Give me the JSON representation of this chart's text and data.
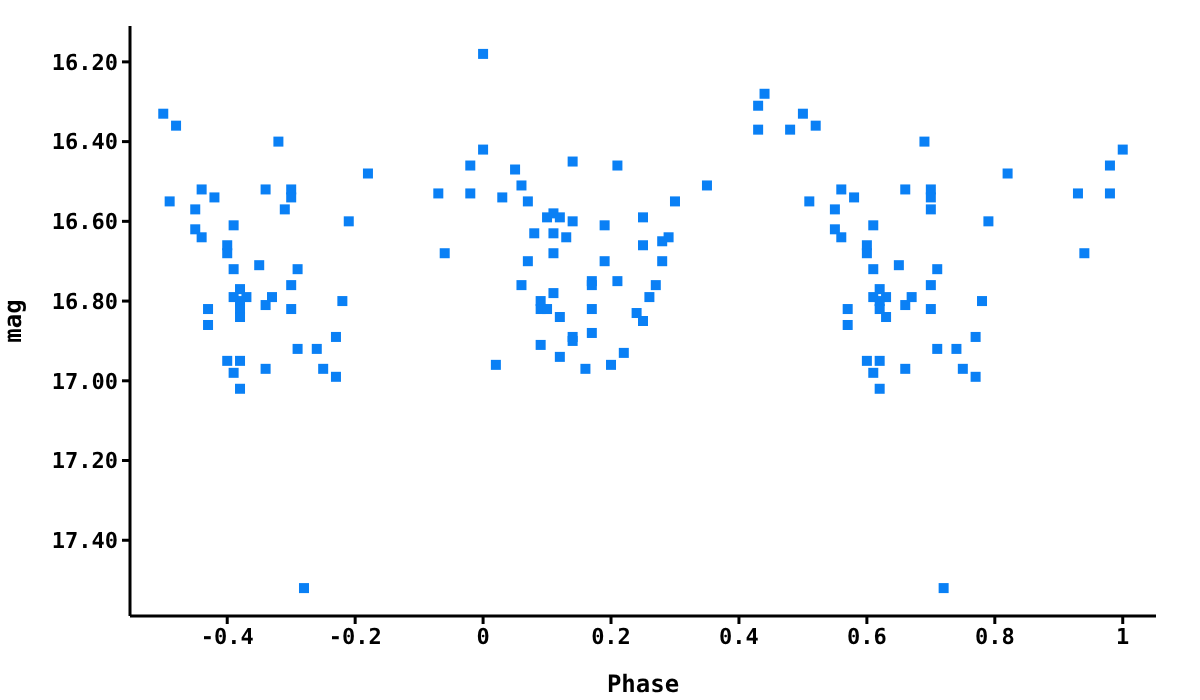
{
  "chart_data": {
    "type": "scatter",
    "xlabel": "Phase",
    "ylabel": "mag",
    "xlim": [
      -0.552,
      1.052
    ],
    "ylim": [
      17.59,
      16.11
    ],
    "xticks": [
      -0.4,
      -0.2,
      0,
      0.2,
      0.4,
      0.6,
      0.8,
      1
    ],
    "yticks": [
      {
        "value": 16.2,
        "label": "16.20"
      },
      {
        "value": 16.4,
        "label": "16.40"
      },
      {
        "value": 16.6,
        "label": "16.60"
      },
      {
        "value": 16.8,
        "label": "16.80"
      },
      {
        "value": 17.0,
        "label": "17.00"
      },
      {
        "value": 17.2,
        "label": "17.20"
      },
      {
        "value": 17.4,
        "label": "17.40"
      }
    ],
    "grid": false,
    "legend": false,
    "marker": "square",
    "series": [
      {
        "color": "#0a80f5",
        "x": [
          -0.5,
          -0.48,
          -0.49,
          -0.44,
          -0.42,
          -0.45,
          -0.45,
          -0.44,
          -0.39,
          -0.4,
          -0.4,
          -0.39,
          -0.35,
          -0.32,
          -0.34,
          -0.3,
          -0.3,
          -0.31,
          -0.29,
          -0.3,
          -0.38,
          -0.39,
          -0.37,
          -0.38,
          -0.38,
          -0.38,
          -0.34,
          -0.33,
          -0.3,
          -0.43,
          -0.43,
          -0.4,
          -0.38,
          -0.39,
          -0.38,
          -0.34,
          -0.29,
          -0.26,
          -0.25,
          -0.23,
          -0.23,
          -0.22,
          -0.21,
          -0.18,
          -0.28,
          -0.07,
          -0.06,
          -0.02,
          -0.02,
          0.0,
          0.0,
          0.02,
          0.05,
          0.06,
          0.03,
          0.07,
          0.14,
          0.21,
          0.35,
          0.3,
          0.25,
          0.1,
          0.11,
          0.12,
          0.14,
          0.08,
          0.11,
          0.13,
          0.19,
          0.25,
          0.29,
          0.28,
          0.11,
          0.07,
          0.19,
          0.28,
          0.06,
          0.17,
          0.17,
          0.21,
          0.27,
          0.11,
          0.26,
          0.09,
          0.09,
          0.1,
          0.12,
          0.17,
          0.24,
          0.25,
          0.17,
          0.14,
          0.14,
          0.09,
          0.12,
          0.22,
          0.16,
          0.2,
          0.43,
          0.44,
          0.43,
          0.48,
          0.5,
          0.52,
          0.51,
          0.56,
          0.58,
          0.55,
          0.55,
          0.56,
          0.61,
          0.6,
          0.6,
          0.61,
          0.65,
          0.69,
          0.66,
          0.7,
          0.7,
          0.7,
          0.71,
          0.7,
          0.62,
          0.61,
          0.63,
          0.62,
          0.62,
          0.63,
          0.66,
          0.67,
          0.7,
          0.57,
          0.57,
          0.6,
          0.62,
          0.61,
          0.62,
          0.66,
          0.71,
          0.74,
          0.75,
          0.77,
          0.77,
          0.78,
          0.79,
          0.82,
          0.72,
          0.93,
          0.94,
          0.98,
          0.98,
          1.0
        ],
        "values": [
          16.33,
          16.36,
          16.55,
          16.52,
          16.54,
          16.57,
          16.62,
          16.64,
          16.61,
          16.66,
          16.68,
          16.72,
          16.71,
          16.4,
          16.52,
          16.52,
          16.54,
          16.57,
          16.72,
          16.76,
          16.77,
          16.79,
          16.79,
          16.8,
          16.82,
          16.84,
          16.81,
          16.79,
          16.82,
          16.82,
          16.86,
          16.95,
          16.95,
          16.98,
          17.02,
          16.97,
          16.92,
          16.92,
          16.97,
          16.89,
          16.99,
          16.8,
          16.6,
          16.48,
          17.52,
          16.53,
          16.68,
          16.53,
          16.46,
          16.18,
          16.42,
          16.96,
          16.47,
          16.51,
          16.54,
          16.55,
          16.45,
          16.46,
          16.51,
          16.55,
          16.59,
          16.59,
          16.58,
          16.59,
          16.6,
          16.63,
          16.63,
          16.64,
          16.61,
          16.66,
          16.64,
          16.65,
          16.68,
          16.7,
          16.7,
          16.7,
          16.76,
          16.75,
          16.76,
          16.75,
          16.76,
          16.78,
          16.79,
          16.8,
          16.82,
          16.82,
          16.84,
          16.82,
          16.83,
          16.85,
          16.88,
          16.89,
          16.9,
          16.91,
          16.94,
          16.93,
          16.97,
          16.96,
          16.31,
          16.28,
          16.37,
          16.37,
          16.33,
          16.36,
          16.55,
          16.52,
          16.54,
          16.57,
          16.62,
          16.64,
          16.61,
          16.66,
          16.68,
          16.72,
          16.71,
          16.4,
          16.52,
          16.52,
          16.54,
          16.57,
          16.72,
          16.76,
          16.77,
          16.79,
          16.79,
          16.8,
          16.82,
          16.84,
          16.81,
          16.79,
          16.82,
          16.82,
          16.86,
          16.95,
          16.95,
          16.98,
          17.02,
          16.97,
          16.92,
          16.92,
          16.97,
          16.89,
          16.99,
          16.8,
          16.6,
          16.48,
          17.52,
          16.53,
          16.68,
          16.53,
          16.46,
          16.42
        ]
      }
    ]
  }
}
